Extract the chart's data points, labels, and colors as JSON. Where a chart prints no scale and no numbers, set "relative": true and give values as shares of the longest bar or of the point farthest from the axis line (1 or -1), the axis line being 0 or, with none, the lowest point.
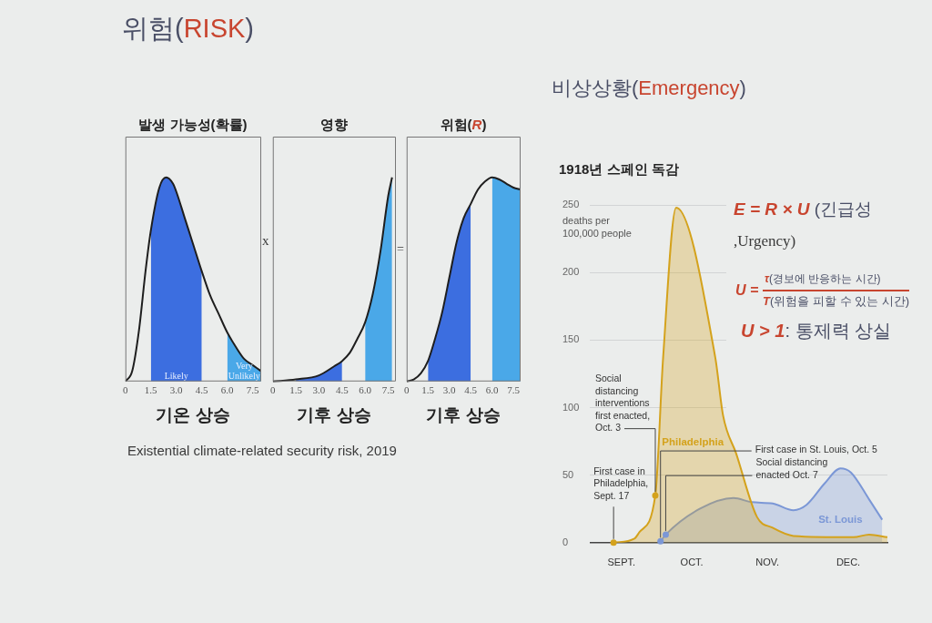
{
  "chart_data": [
    {
      "type": "other",
      "title": "위험(RISK)",
      "annotations": [
        "x",
        "=",
        "Existential climate-related security risk, 2019"
      ]
    },
    {
      "type": "area",
      "title": "발생 가능성(확률)",
      "xlabel": "기온 상승",
      "relative": true,
      "xlim": [
        0,
        8
      ],
      "xticks": [
        0,
        1.5,
        {
          "value": 3,
          "label": "3.0"
        },
        4.5,
        {
          "value": 6,
          "label": "6.0"
        },
        7.5
      ],
      "series": [
        {
          "type": "line",
          "color": "#1e1e1e",
          "x": [
            0,
            0.4,
            0.8,
            1.2,
            1.5,
            2,
            2.4,
            2.8,
            3,
            3.5,
            4,
            4.5,
            5,
            5.5,
            6,
            6.5,
            7,
            7.5,
            8
          ],
          "values": [
            0,
            0.05,
            0.25,
            0.55,
            0.74,
            0.95,
            1,
            0.97,
            0.93,
            0.8,
            0.67,
            0.54,
            0.42,
            0.33,
            0.24,
            0.17,
            0.11,
            0.08,
            0.05
          ]
        },
        {
          "name": "Likely",
          "color": "#3c6ee0",
          "x": [
            1.5,
            2,
            2.4,
            2.8,
            3,
            3.5,
            4,
            4.5
          ],
          "values": [
            0.74,
            0.95,
            1,
            0.97,
            0.93,
            0.8,
            0.67,
            0.54
          ]
        },
        {
          "name": "Very Unlikely",
          "color": "#4aa8e8",
          "x": [
            6,
            6.5,
            7,
            7.5,
            8
          ],
          "values": [
            0.24,
            0.17,
            0.11,
            0.08,
            0.05
          ]
        }
      ]
    },
    {
      "type": "area",
      "title": "영향",
      "xlabel": "기후 상승",
      "relative": true,
      "xlim": [
        0,
        8
      ],
      "xticks": [
        0,
        1.5,
        {
          "value": 3,
          "label": "3.0"
        },
        4.5,
        {
          "value": 6,
          "label": "6.0"
        },
        7.5
      ],
      "series": [
        {
          "type": "line",
          "color": "#1e1e1e",
          "x": [
            0,
            1.5,
            3,
            4,
            4.5,
            5,
            5.5,
            6,
            6.5,
            7,
            7.5,
            7.75
          ],
          "values": [
            0,
            0.01,
            0.03,
            0.075,
            0.1,
            0.14,
            0.21,
            0.29,
            0.43,
            0.64,
            0.91,
            1
          ]
        },
        {
          "color": "#3c6ee0",
          "x": [
            1.5,
            3,
            4,
            4.5
          ],
          "values": [
            0.01,
            0.03,
            0.075,
            0.1
          ]
        },
        {
          "color": "#4aa8e8",
          "x": [
            6,
            6.5,
            7,
            7.5,
            7.75
          ],
          "values": [
            0.29,
            0.43,
            0.64,
            0.91,
            1
          ]
        }
      ]
    },
    {
      "type": "area",
      "title": "위험(R)",
      "xlabel": "기후 상승",
      "relative": true,
      "xlim": [
        0,
        8
      ],
      "xticks": [
        0,
        1.5,
        {
          "value": 3,
          "label": "3.0"
        },
        4.5,
        {
          "value": 6,
          "label": "6.0"
        },
        7.5
      ],
      "series": [
        {
          "type": "line",
          "color": "#1e1e1e",
          "x": [
            0,
            0.5,
            1,
            1.5,
            2,
            2.5,
            3,
            3.5,
            4,
            4.5,
            5,
            5.5,
            6,
            6.5,
            7,
            7.5,
            8
          ],
          "values": [
            0,
            0.01,
            0.04,
            0.1,
            0.21,
            0.34,
            0.51,
            0.68,
            0.8,
            0.87,
            0.94,
            0.98,
            1,
            0.99,
            0.97,
            0.95,
            0.94
          ]
        },
        {
          "color": "#3c6ee0",
          "x": [
            1.5,
            2,
            2.5,
            3,
            3.5,
            4,
            4.5
          ],
          "values": [
            0.1,
            0.21,
            0.34,
            0.51,
            0.68,
            0.8,
            0.87
          ]
        },
        {
          "color": "#4aa8e8",
          "x": [
            6,
            6.5,
            7,
            7.5,
            8
          ],
          "values": [
            1,
            0.99,
            0.97,
            0.95,
            0.94
          ]
        }
      ]
    },
    {
      "type": "other",
      "title": "비상상황(Emergency)",
      "annotations": [
        "E = R × U (긴급성",
        ",Urgency)",
        "U =",
        "τ(경보에 반응하는 시간)",
        "T(위험을 피할 수 있는 시간)",
        "U > 1: 통제력 상실"
      ]
    },
    {
      "type": "area",
      "title": "1918년 스페인 독감",
      "ylabel": "deaths per 100,000 people",
      "xlim": [
        "--09-08",
        "--12-31"
      ],
      "xticks": [
        {
          "value": "--09-20",
          "label": "SEPT."
        },
        {
          "value": "--10-17",
          "label": "OCT."
        },
        {
          "value": "--11-15",
          "label": "NOV."
        },
        {
          "value": "--12-16",
          "label": "DEC."
        }
      ],
      "ylim": [
        0,
        250
      ],
      "yticks": [
        0,
        50,
        100,
        150,
        200,
        250
      ],
      "grid": "y",
      "series": [
        {
          "name": "Philadelphia",
          "color": "#d4a21c",
          "x": [
            "--09-17",
            "--09-25",
            "--09-27",
            "--10-03",
            "--10-06",
            "--10-11",
            "--10-26",
            "--10-29",
            "--11-03",
            "--11-11",
            "--11-17",
            "--11-25",
            "--12-18",
            "--12-24",
            "--12-31"
          ],
          "values": [
            0,
            3,
            8,
            35,
            137,
            248,
            137,
            94,
            66,
            19,
            11,
            5,
            4,
            6,
            4
          ]
        },
        {
          "name": "St. Louis",
          "color": "#7b97d6",
          "x": [
            "--10-05",
            "--10-07",
            "--10-20",
            "--11-02",
            "--11-09",
            "--11-17",
            "--11-25",
            "--11-30",
            "--12-07",
            "--12-13",
            "--12-17",
            "--12-24",
            "--12-29"
          ],
          "values": [
            1,
            6,
            25,
            33,
            30,
            29,
            24,
            28,
            44,
            55,
            52,
            32,
            17
          ]
        }
      ],
      "annotations": [
        {
          "text": "Social distancing interventions first enacted, Oct. 3",
          "x": "--10-03",
          "y": 35
        },
        {
          "text": "First case in Philadelphia, Sept. 17",
          "x": "--09-17",
          "y": 0
        },
        {
          "text": "First case in St. Louis, Oct. 5",
          "x": "--10-05",
          "y": 1
        },
        {
          "text": "Social distancing enacted Oct. 7",
          "x": "--10-07",
          "y": 6
        }
      ]
    }
  ]
}
